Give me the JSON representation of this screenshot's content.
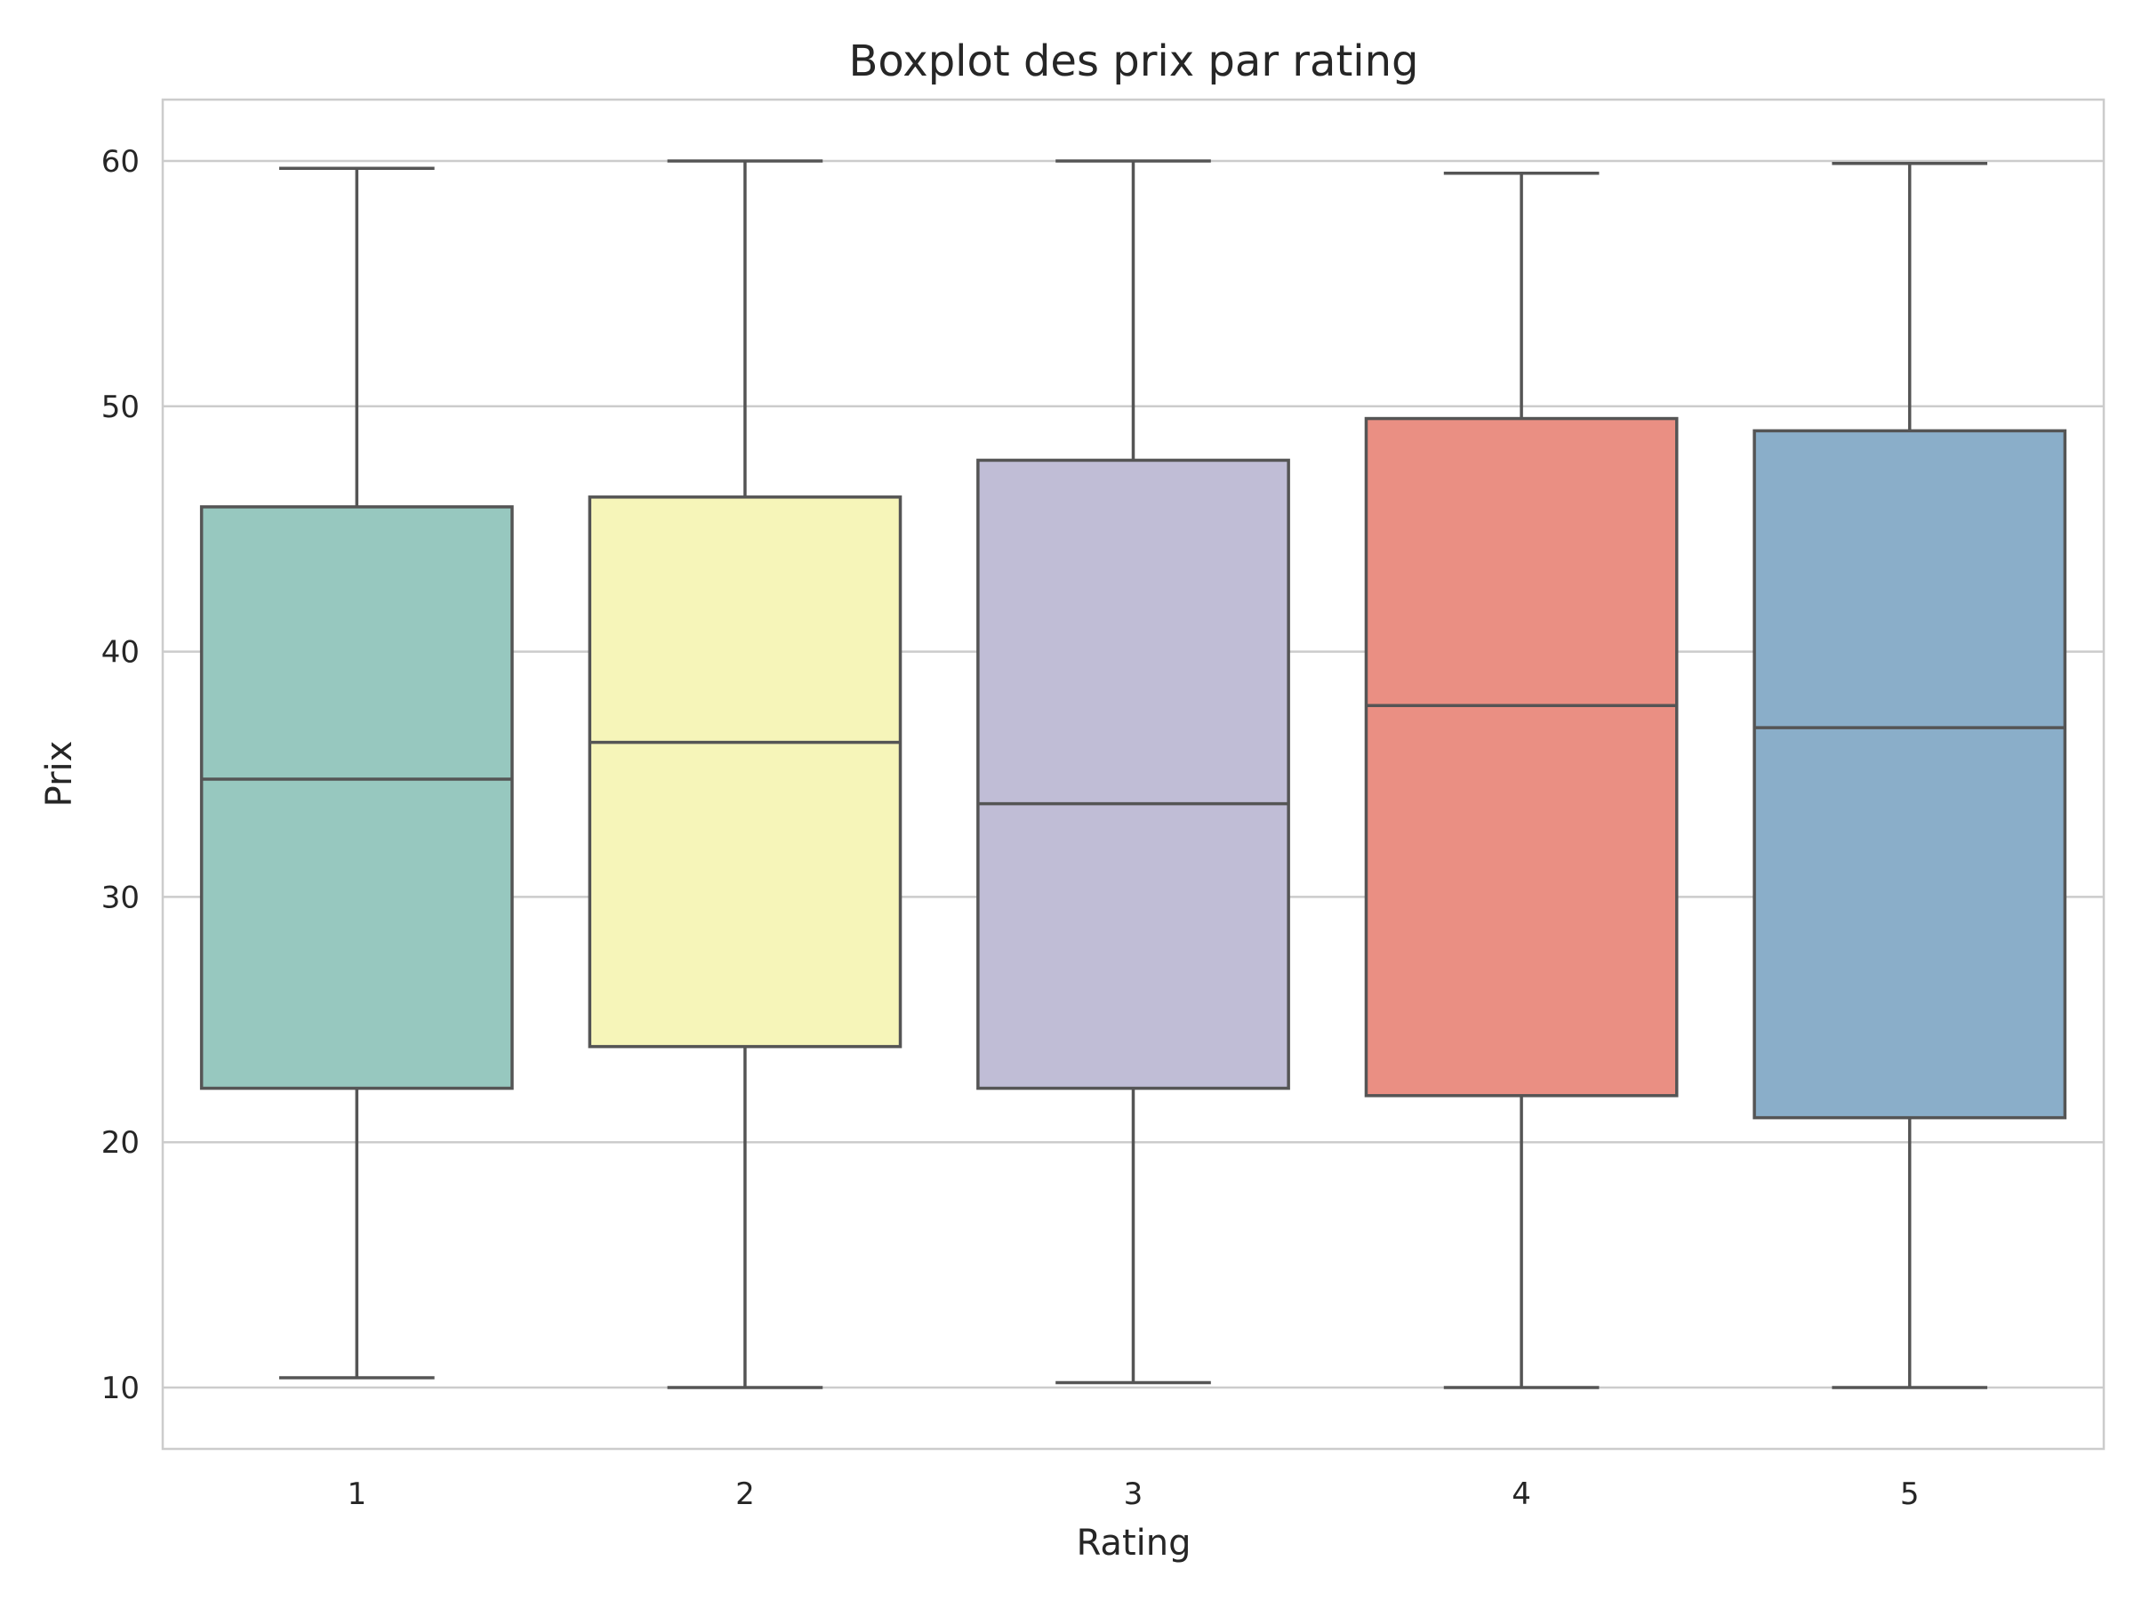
{
  "chart_data": {
    "type": "boxplot",
    "title": "Boxplot des prix par rating",
    "xlabel": "Rating",
    "ylabel": "Prix",
    "categories": [
      "1",
      "2",
      "3",
      "4",
      "5"
    ],
    "ylim": [
      7.5,
      62.5
    ],
    "yticks": [
      10,
      20,
      30,
      40,
      50,
      60
    ],
    "grid": true,
    "legend": "none",
    "boxes": [
      {
        "category": "1",
        "whisker_low": 10.4,
        "q1": 22.2,
        "median": 34.8,
        "q3": 45.9,
        "whisker_high": 59.7,
        "color": "#97c8bf"
      },
      {
        "category": "2",
        "whisker_low": 10.0,
        "q1": 23.9,
        "median": 36.3,
        "q3": 46.3,
        "whisker_high": 60.0,
        "color": "#f6f5b9"
      },
      {
        "category": "3",
        "whisker_low": 10.2,
        "q1": 22.2,
        "median": 33.8,
        "q3": 47.8,
        "whisker_high": 60.0,
        "color": "#c0bdd6"
      },
      {
        "category": "4",
        "whisker_low": 10.0,
        "q1": 21.9,
        "median": 37.8,
        "q3": 49.5,
        "whisker_high": 59.5,
        "color": "#ea8f83"
      },
      {
        "category": "5",
        "whisker_low": 10.0,
        "q1": 21.0,
        "median": 36.9,
        "q3": 49.0,
        "whisker_high": 59.9,
        "color": "#8aaec9"
      }
    ]
  }
}
